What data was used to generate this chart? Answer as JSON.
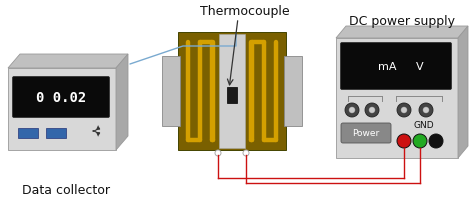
{
  "bg_color": "#ffffff",
  "title": "Thermocouple",
  "label_dc": "DC power supply",
  "label_collector": "Data collector",
  "label_gnd": "GND",
  "label_power": "Power",
  "label_mA": "mA",
  "label_V": "V",
  "display_text": "0 0.02",
  "gray_light": "#d8d8d8",
  "gray_mid": "#c0c0c0",
  "gray_dark": "#a8a8a8",
  "gold_board": "#7a6000",
  "gold_coil": "#d4a000",
  "black_display": "#0a0a0a",
  "white_text": "#ffffff",
  "blue_wire": "#7aaad0",
  "red_wire": "#cc1111",
  "green_dot": "#22aa22",
  "red_dot": "#cc1111",
  "black_dot": "#111111",
  "center_gap": "#d0d0d0",
  "knob_dark": "#444444",
  "knob_light": "#888888",
  "blue_btn": "#3366aa"
}
